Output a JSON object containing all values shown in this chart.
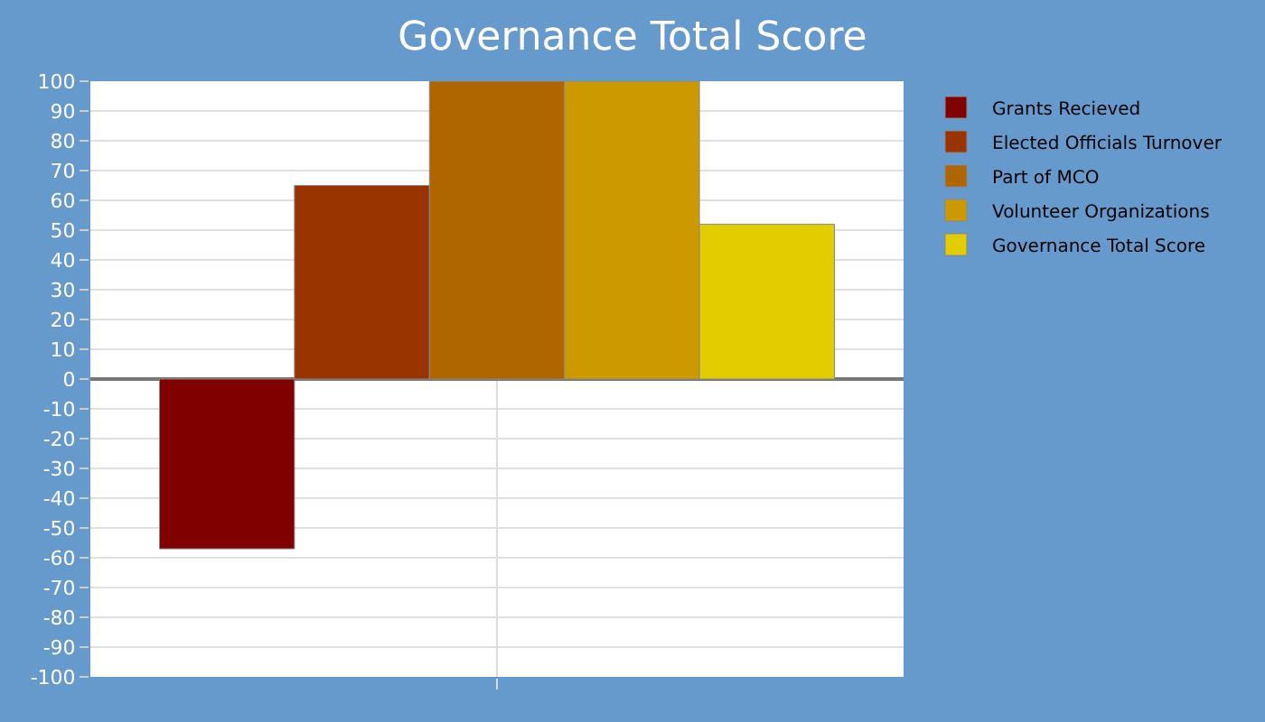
{
  "chart_data": {
    "type": "bar",
    "title": "Governance Total Score",
    "categories": [
      null
    ],
    "series": [
      {
        "name": "Grants Recieved",
        "color": "#800000",
        "values": [
          -57
        ]
      },
      {
        "name": "Elected Officials Turnover",
        "color": "#993300",
        "values": [
          65
        ]
      },
      {
        "name": "Part of MCO",
        "color": "#b06600",
        "values": [
          100
        ]
      },
      {
        "name": "Volunteer Organizations",
        "color": "#cc9900",
        "values": [
          100
        ]
      },
      {
        "name": "Governance Total Score",
        "color": "#e3cc00",
        "values": [
          52
        ]
      }
    ],
    "ylim": [
      -100,
      100
    ],
    "yticks": [
      -100,
      -90,
      -80,
      -70,
      -60,
      -50,
      -40,
      -30,
      -20,
      -10,
      0,
      10,
      20,
      30,
      40,
      50,
      60,
      70,
      80,
      90,
      100
    ],
    "grid": true,
    "legend": "top right"
  }
}
